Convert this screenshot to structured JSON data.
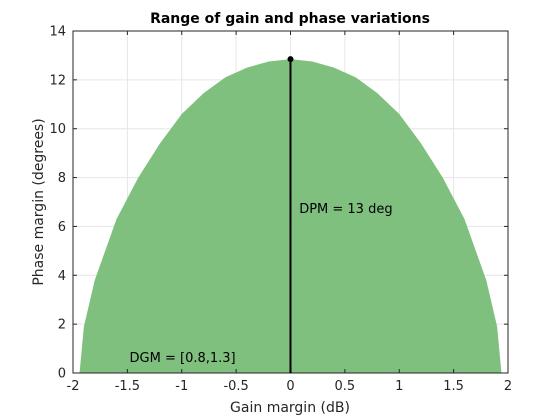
{
  "chart_data": {
    "type": "area",
    "title": "Range of gain and phase variations",
    "xlabel": "Gain margin (dB)",
    "ylabel": "Phase margin (degrees)",
    "xlim": [
      -2,
      2
    ],
    "ylim": [
      0,
      14
    ],
    "xticks": [
      -2,
      -1.5,
      -1,
      -0.5,
      0,
      0.5,
      1,
      1.5,
      2
    ],
    "xtick_labels": [
      "-2",
      "-1.5",
      "-1",
      "-0.5",
      "0",
      "0.5",
      "1",
      "1.5",
      "2"
    ],
    "yticks": [
      0,
      2,
      4,
      6,
      8,
      10,
      12,
      14
    ],
    "ytick_labels": [
      "0",
      "2",
      "4",
      "6",
      "8",
      "10",
      "12",
      "14"
    ],
    "grid": true,
    "region": {
      "gain_min_db": -1.94,
      "gain_max_db": 1.94,
      "peak_phase_deg": 12.85,
      "points": [
        [
          -1.94,
          0
        ],
        [
          -1.9,
          1.9
        ],
        [
          -1.8,
          3.8
        ],
        [
          -1.6,
          6.3
        ],
        [
          -1.4,
          8.0
        ],
        [
          -1.2,
          9.4
        ],
        [
          -1.0,
          10.6
        ],
        [
          -0.8,
          11.45
        ],
        [
          -0.6,
          12.1
        ],
        [
          -0.4,
          12.5
        ],
        [
          -0.2,
          12.75
        ],
        [
          0,
          12.85
        ],
        [
          0.2,
          12.75
        ],
        [
          0.4,
          12.5
        ],
        [
          0.6,
          12.1
        ],
        [
          0.8,
          11.45
        ],
        [
          1.0,
          10.6
        ],
        [
          1.2,
          9.4
        ],
        [
          1.4,
          8.0
        ],
        [
          1.6,
          6.3
        ],
        [
          1.8,
          3.8
        ],
        [
          1.9,
          1.9
        ],
        [
          1.94,
          0
        ]
      ]
    },
    "disk_margin_line": {
      "x": 0,
      "y_from": 0,
      "y_to": 12.85
    },
    "annotations": [
      {
        "text": "DPM = 13 deg",
        "x": 0.08,
        "y": 6.55
      },
      {
        "text": "DGM = [0.8,1.3]",
        "x": -1.48,
        "y": 0.45
      }
    ],
    "colors": {
      "fill": "#7fc07f",
      "line": "#000000",
      "grid": "#e6e6e6",
      "axis": "#262626"
    }
  }
}
